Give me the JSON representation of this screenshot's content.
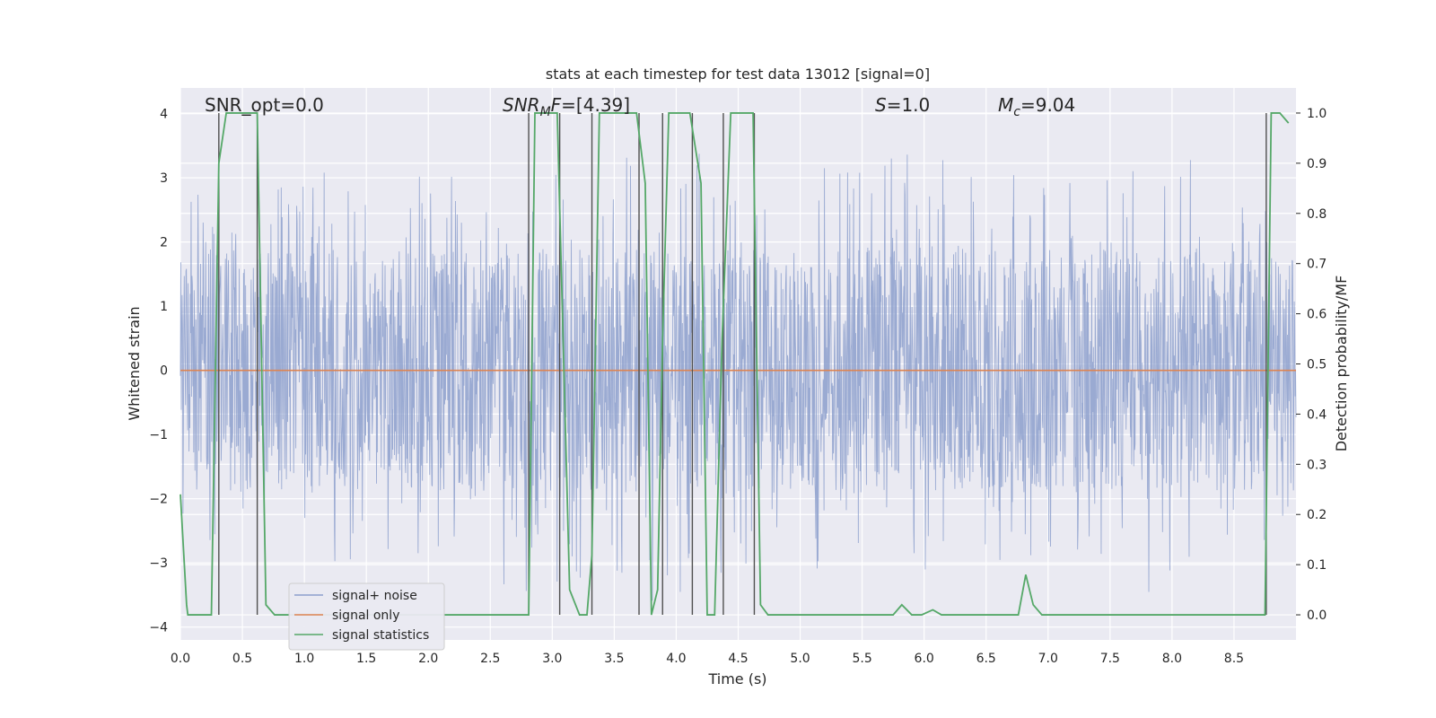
{
  "chart_data": {
    "type": "line",
    "title": "stats at each timestep for test data 13012 [signal=0]",
    "xlabel": "Time (s)",
    "ylabel": "Whitened strain",
    "y2label": "Detection probability/MF",
    "xlim": [
      0.0,
      9.0
    ],
    "ylim": [
      -4.2,
      4.4
    ],
    "y2lim": [
      -0.05,
      1.05
    ],
    "xticks": [
      0.0,
      0.5,
      1.0,
      1.5,
      2.0,
      2.5,
      3.0,
      3.5,
      4.0,
      4.5,
      5.0,
      5.5,
      6.0,
      6.5,
      7.0,
      7.5,
      8.0,
      8.5
    ],
    "xtick_labels": [
      "0.0",
      "0.5",
      "1.0",
      "1.5",
      "2.0",
      "2.5",
      "3.0",
      "3.5",
      "4.0",
      "4.5",
      "5.0",
      "5.5",
      "6.0",
      "6.5",
      "7.0",
      "7.5",
      "8.0",
      "8.5"
    ],
    "yticks": [
      -4,
      -3,
      -2,
      -1,
      0,
      1,
      2,
      3,
      4
    ],
    "ytick_labels": [
      "−4",
      "−3",
      "−2",
      "−1",
      "0",
      "1",
      "2",
      "3",
      "4"
    ],
    "y2ticks": [
      0.0,
      0.1,
      0.2,
      0.3,
      0.4,
      0.5,
      0.6,
      0.7,
      0.8,
      0.9,
      1.0
    ],
    "y2tick_labels": [
      "0.0",
      "0.1",
      "0.2",
      "0.3",
      "0.4",
      "0.5",
      "0.6",
      "0.7",
      "0.8",
      "0.9",
      "1.0"
    ],
    "grid": true,
    "legend_position": "lower-left",
    "annotations": {
      "snr_opt": "SNR_opt=0.0",
      "snr_mf_main": "SNR",
      "snr_mf_sub": "M",
      "snr_mf_rest_italic": "F",
      "snr_mf_value": "=[4.39]",
      "s_italic": "S",
      "s_value": "=1.0",
      "mc_main": "M",
      "mc_sub": "c",
      "mc_value": "=9.04"
    },
    "series": [
      {
        "name": "signal+ noise",
        "color": "#8c9fcc",
        "axis": "left",
        "style": "dense noise band",
        "envelope": {
          "x": [
            0.0,
            0.5,
            1.0,
            1.5,
            2.0,
            2.5,
            3.0,
            3.5,
            4.0,
            4.5,
            5.0,
            5.5,
            6.0,
            6.5,
            7.0,
            7.5,
            8.0,
            8.5,
            9.0
          ],
          "upper_peak": [
            3.0,
            2.6,
            3.2,
            2.9,
            3.1,
            3.4,
            3.5,
            3.3,
            3.6,
            3.0,
            3.2,
            3.3,
            3.4,
            3.0,
            3.3,
            3.0,
            3.2,
            3.0,
            2.8
          ],
          "lower_peak": [
            -2.9,
            -3.2,
            -2.9,
            -3.3,
            -3.3,
            -2.7,
            -2.9,
            -3.7,
            -3.7,
            -2.7,
            -2.8,
            -2.7,
            -3.2,
            -3.0,
            -3.1,
            -3.0,
            -3.8,
            -3.2,
            -3.0
          ],
          "typical_upper": [
            1.8,
            1.8,
            1.9,
            1.8,
            1.9,
            1.9,
            1.9,
            1.9,
            1.9,
            1.8,
            1.9,
            1.9,
            1.9,
            1.9,
            1.9,
            1.9,
            1.9,
            1.9,
            1.8
          ],
          "typical_lower": [
            -1.9,
            -1.9,
            -1.8,
            -1.9,
            -1.9,
            -1.9,
            -1.9,
            -1.9,
            -1.9,
            -1.9,
            -1.9,
            -1.9,
            -1.9,
            -1.9,
            -1.9,
            -1.9,
            -1.9,
            -1.9,
            -1.9
          ]
        }
      },
      {
        "name": "signal only",
        "color": "#dd8452",
        "axis": "left",
        "x": [
          0.0,
          9.0
        ],
        "y": [
          0.0,
          0.0
        ]
      },
      {
        "name": "signal statistics",
        "color": "#55a868",
        "axis": "right",
        "x": [
          0.0,
          0.05,
          0.06,
          0.25,
          0.31,
          0.37,
          0.62,
          0.69,
          0.76,
          2.81,
          2.86,
          3.04,
          3.14,
          3.22,
          3.28,
          3.32,
          3.38,
          3.68,
          3.75,
          3.8,
          3.85,
          3.89,
          3.94,
          4.11,
          4.2,
          4.25,
          4.31,
          4.37,
          4.44,
          4.62,
          4.68,
          4.74,
          4.8,
          5.75,
          5.82,
          5.9,
          5.98,
          6.07,
          6.14,
          6.2,
          6.76,
          6.82,
          6.88,
          6.95,
          8.75,
          8.8,
          8.87,
          8.94
        ],
        "y": [
          0.24,
          0.02,
          0.0,
          0.0,
          0.9,
          1.0,
          1.0,
          0.02,
          0.0,
          0.0,
          1.0,
          1.0,
          0.05,
          0.0,
          0.0,
          0.12,
          1.0,
          1.0,
          0.86,
          0.0,
          0.05,
          0.55,
          1.0,
          1.0,
          0.86,
          0.0,
          0.0,
          0.55,
          1.0,
          1.0,
          0.02,
          0.0,
          0.0,
          0.0,
          0.02,
          0.0,
          0.0,
          0.01,
          0.0,
          0.0,
          0.0,
          0.08,
          0.02,
          0.0,
          0.0,
          1.0,
          1.0,
          0.98
        ]
      }
    ],
    "vertical_markers": {
      "color": "#505050",
      "x": [
        0.31,
        0.62,
        2.81,
        3.06,
        3.32,
        3.7,
        3.89,
        4.13,
        4.38,
        4.63,
        8.76
      ],
      "y2_range": [
        0.0,
        1.0
      ]
    }
  }
}
